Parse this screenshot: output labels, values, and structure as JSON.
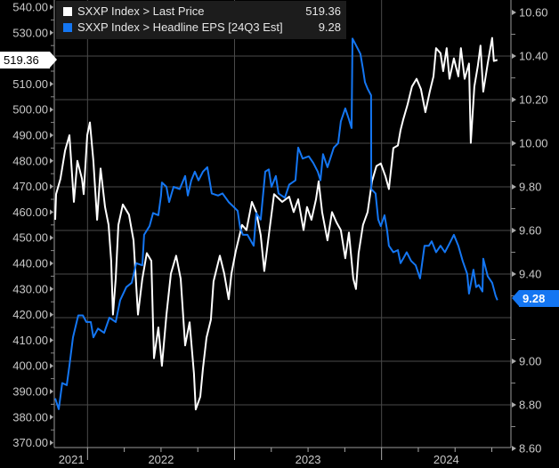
{
  "chart_data": {
    "type": "line",
    "title": "",
    "xlabel": "",
    "xlim": [
      2021.78,
      2024.88
    ],
    "x_ticks": [
      "2021",
      "2022",
      "2023",
      "2024"
    ],
    "grid": true,
    "legend_position": "top-left",
    "left_axis": {
      "ylim": [
        370,
        540
      ],
      "ticks": [
        "370.00",
        "380.00",
        "390.00",
        "400.00",
        "410.00",
        "420.00",
        "430.00",
        "440.00",
        "450.00",
        "460.00",
        "470.00",
        "480.00",
        "490.00",
        "500.00",
        "510.00",
        "520.00",
        "530.00",
        "540.00"
      ],
      "last_value_tag": "519.36"
    },
    "right_axis": {
      "ylim": [
        8.6,
        10.6
      ],
      "ticks": [
        "8.60",
        "8.80",
        "9.00",
        "9.20",
        "9.40",
        "9.60",
        "9.80",
        "10.00",
        "10.20",
        "10.40",
        "10.60"
      ],
      "last_value_tag": "9.28"
    },
    "series": [
      {
        "name": "SXXP Index > Last Price",
        "last": "519.36",
        "axis": "left",
        "color": "#ffffff",
        "points": [
          [
            2021.78,
            457
          ],
          [
            2021.786,
            467
          ],
          [
            2021.816,
            473
          ],
          [
            2021.847,
            484
          ],
          [
            2021.877,
            490
          ],
          [
            2021.907,
            464
          ],
          [
            2021.931,
            480
          ],
          [
            2021.962,
            473
          ],
          [
            2021.974,
            467
          ],
          [
            2021.998,
            490
          ],
          [
            2022.016,
            495
          ],
          [
            2022.04,
            480
          ],
          [
            2022.065,
            457
          ],
          [
            2022.089,
            477
          ],
          [
            2022.119,
            462
          ],
          [
            2022.143,
            455
          ],
          [
            2022.161,
            441
          ],
          [
            2022.173,
            420
          ],
          [
            2022.192,
            434
          ],
          [
            2022.21,
            455
          ],
          [
            2022.24,
            463
          ],
          [
            2022.282,
            459
          ],
          [
            2022.313,
            449
          ],
          [
            2022.343,
            420
          ],
          [
            2022.373,
            434
          ],
          [
            2022.403,
            444
          ],
          [
            2022.434,
            441
          ],
          [
            2022.452,
            403
          ],
          [
            2022.482,
            415
          ],
          [
            2022.506,
            400
          ],
          [
            2022.537,
            420
          ],
          [
            2022.567,
            436
          ],
          [
            2022.603,
            443
          ],
          [
            2022.634,
            434
          ],
          [
            2022.664,
            408
          ],
          [
            2022.694,
            417
          ],
          [
            2022.724,
            397
          ],
          [
            2022.736,
            383
          ],
          [
            2022.767,
            388
          ],
          [
            2022.785,
            399
          ],
          [
            2022.809,
            411
          ],
          [
            2022.839,
            418
          ],
          [
            2022.857,
            433
          ],
          [
            2022.9,
            443
          ],
          [
            2022.93,
            436
          ],
          [
            2022.96,
            426
          ],
          [
            2022.979,
            436
          ],
          [
            2023.009,
            445
          ],
          [
            2023.051,
            455
          ],
          [
            2023.081,
            453
          ],
          [
            2023.118,
            464
          ],
          [
            2023.148,
            460
          ],
          [
            2023.178,
            451
          ],
          [
            2023.202,
            437
          ],
          [
            2023.233,
            451
          ],
          [
            2023.269,
            467
          ],
          [
            2023.324,
            464
          ],
          [
            2023.372,
            466
          ],
          [
            2023.402,
            460
          ],
          [
            2023.433,
            465
          ],
          [
            2023.469,
            453
          ],
          [
            2023.493,
            462
          ],
          [
            2023.523,
            457
          ],
          [
            2023.554,
            465
          ],
          [
            2023.572,
            472
          ],
          [
            2023.596,
            460
          ],
          [
            2023.632,
            449
          ],
          [
            2023.663,
            460
          ],
          [
            2023.693,
            456
          ],
          [
            2023.723,
            453
          ],
          [
            2023.753,
            442
          ],
          [
            2023.778,
            452
          ],
          [
            2023.808,
            434
          ],
          [
            2023.826,
            430
          ],
          [
            2023.844,
            444
          ],
          [
            2023.874,
            455
          ],
          [
            2023.905,
            460
          ],
          [
            2023.935,
            472
          ],
          [
            2023.965,
            478
          ],
          [
            2023.995,
            479
          ],
          [
            2024.026,
            474
          ],
          [
            2024.05,
            469
          ],
          [
            2024.08,
            485
          ],
          [
            2024.111,
            486
          ],
          [
            2024.129,
            492
          ],
          [
            2024.147,
            496
          ],
          [
            2024.177,
            502
          ],
          [
            2024.207,
            509
          ],
          [
            2024.238,
            512
          ],
          [
            2024.268,
            508
          ],
          [
            2024.298,
            499
          ],
          [
            2024.328,
            507
          ],
          [
            2024.353,
            513
          ],
          [
            2024.371,
            524
          ],
          [
            2024.401,
            522
          ],
          [
            2024.419,
            515
          ],
          [
            2024.443,
            524
          ],
          [
            2024.462,
            512
          ],
          [
            2024.492,
            520
          ],
          [
            2024.522,
            513
          ],
          [
            2024.54,
            524
          ],
          [
            2024.565,
            512
          ],
          [
            2024.595,
            518
          ],
          [
            2024.607,
            487
          ],
          [
            2024.631,
            509
          ],
          [
            2024.655,
            517
          ],
          [
            2024.673,
            525
          ],
          [
            2024.692,
            507
          ],
          [
            2024.722,
            518
          ],
          [
            2024.752,
            528
          ],
          [
            2024.764,
            519
          ],
          [
            2024.788,
            519.36
          ]
        ]
      },
      {
        "name": "SXXP Index > Headline EPS [24Q3 Est]",
        "last": "9.28",
        "axis": "right",
        "color": "#1476f2",
        "points": [
          [
            2021.78,
            8.83
          ],
          [
            2021.804,
            8.78
          ],
          [
            2021.828,
            8.9
          ],
          [
            2021.859,
            8.89
          ],
          [
            2021.877,
            8.98
          ],
          [
            2021.901,
            9.11
          ],
          [
            2021.937,
            9.21
          ],
          [
            2021.968,
            9.21
          ],
          [
            2021.992,
            9.18
          ],
          [
            2022.022,
            9.18
          ],
          [
            2022.04,
            9.11
          ],
          [
            2022.071,
            9.15
          ],
          [
            2022.113,
            9.13
          ],
          [
            2022.149,
            9.2
          ],
          [
            2022.192,
            9.18
          ],
          [
            2022.222,
            9.28
          ],
          [
            2022.264,
            9.34
          ],
          [
            2022.301,
            9.36
          ],
          [
            2022.331,
            9.45
          ],
          [
            2022.373,
            9.44
          ],
          [
            2022.385,
            9.58
          ],
          [
            2022.422,
            9.62
          ],
          [
            2022.446,
            9.68
          ],
          [
            2022.482,
            9.67
          ],
          [
            2022.5,
            9.76
          ],
          [
            2022.506,
            9.82
          ],
          [
            2022.537,
            9.8
          ],
          [
            2022.555,
            9.73
          ],
          [
            2022.585,
            9.8
          ],
          [
            2022.627,
            9.79
          ],
          [
            2022.664,
            9.85
          ],
          [
            2022.682,
            9.76
          ],
          [
            2022.706,
            9.83
          ],
          [
            2022.73,
            9.87
          ],
          [
            2022.755,
            9.83
          ],
          [
            2022.785,
            9.87
          ],
          [
            2022.815,
            9.89
          ],
          [
            2022.845,
            9.77
          ],
          [
            2022.888,
            9.76
          ],
          [
            2022.918,
            9.77
          ],
          [
            2022.96,
            9.73
          ],
          [
            2022.991,
            9.71
          ],
          [
            2023.021,
            9.69
          ],
          [
            2023.039,
            9.61
          ],
          [
            2023.057,
            9.58
          ],
          [
            2023.088,
            9.58
          ],
          [
            2023.13,
            9.53
          ],
          [
            2023.148,
            9.68
          ],
          [
            2023.178,
            9.65
          ],
          [
            2023.209,
            9.87
          ],
          [
            2023.233,
            9.88
          ],
          [
            2023.251,
            9.8
          ],
          [
            2023.281,
            9.85
          ],
          [
            2023.299,
            9.77
          ],
          [
            2023.342,
            9.75
          ],
          [
            2023.372,
            9.81
          ],
          [
            2023.414,
            9.83
          ],
          [
            2023.433,
            9.98
          ],
          [
            2023.463,
            9.93
          ],
          [
            2023.505,
            9.94
          ],
          [
            2023.535,
            9.91
          ],
          [
            2023.566,
            9.87
          ],
          [
            2023.584,
            9.83
          ],
          [
            2023.602,
            9.95
          ],
          [
            2023.632,
            9.89
          ],
          [
            2023.675,
            9.98
          ],
          [
            2023.705,
            10.0
          ],
          [
            2023.723,
            10.1
          ],
          [
            2023.753,
            10.16
          ],
          [
            2023.778,
            10.11
          ],
          [
            2023.796,
            10.07
          ],
          [
            2023.802,
            10.48
          ],
          [
            2023.826,
            10.45
          ],
          [
            2023.856,
            10.41
          ],
          [
            2023.874,
            10.34
          ],
          [
            2023.887,
            10.28
          ],
          [
            2023.905,
            10.25
          ],
          [
            2023.929,
            10.22
          ],
          [
            2023.93,
            9.79
          ],
          [
            2023.959,
            9.77
          ],
          [
            2023.977,
            9.65
          ],
          [
            2023.995,
            9.62
          ],
          [
            2024.02,
            9.67
          ],
          [
            2024.038,
            9.6
          ],
          [
            2024.05,
            9.53
          ],
          [
            2024.08,
            9.5
          ],
          [
            2024.111,
            9.51
          ],
          [
            2024.129,
            9.45
          ],
          [
            2024.147,
            9.47
          ],
          [
            2024.171,
            9.5
          ],
          [
            2024.201,
            9.46
          ],
          [
            2024.232,
            9.44
          ],
          [
            2024.262,
            9.38
          ],
          [
            2024.292,
            9.53
          ],
          [
            2024.322,
            9.53
          ],
          [
            2024.341,
            9.55
          ],
          [
            2024.371,
            9.5
          ],
          [
            2024.401,
            9.53
          ],
          [
            2024.431,
            9.5
          ],
          [
            2024.462,
            9.54
          ],
          [
            2024.492,
            9.58
          ],
          [
            2024.522,
            9.53
          ],
          [
            2024.552,
            9.46
          ],
          [
            2024.583,
            9.4
          ],
          [
            2024.595,
            9.31
          ],
          [
            2024.625,
            9.42
          ],
          [
            2024.643,
            9.34
          ],
          [
            2024.661,
            9.35
          ],
          [
            2024.686,
            9.32
          ],
          [
            2024.692,
            9.47
          ],
          [
            2024.722,
            9.39
          ],
          [
            2024.752,
            9.36
          ],
          [
            2024.776,
            9.3
          ],
          [
            2024.788,
            9.28
          ]
        ]
      }
    ]
  }
}
